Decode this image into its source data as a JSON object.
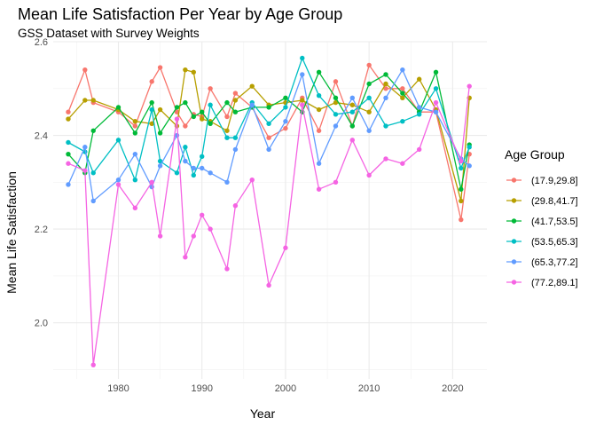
{
  "chart_data": {
    "type": "line",
    "title": "Mean Life Satisfaction Per Year by Age Group",
    "subtitle": "GSS Dataset with Survey Weights",
    "xlabel": "Year",
    "ylabel": "Mean Life Satisfaction",
    "xlim": [
      1972.2,
      2024.1
    ],
    "ylim": [
      1.88,
      2.6
    ],
    "xticks": [
      1980,
      1990,
      2000,
      2010,
      2020
    ],
    "yticks": [
      2.0,
      2.2,
      2.4,
      2.6
    ],
    "ytick_labels": [
      "2.0",
      "2.2",
      "2.4",
      "2.6"
    ],
    "grid": true,
    "legend_title": "Age Group",
    "legend_position": "right",
    "x": [
      1974,
      1976,
      1977,
      1980,
      1982,
      1984,
      1985,
      1987,
      1988,
      1989,
      1990,
      1991,
      1993,
      1994,
      1996,
      1998,
      2000,
      2002,
      2004,
      2006,
      2008,
      2010,
      2012,
      2014,
      2016,
      2018,
      2021,
      2022
    ],
    "series": [
      {
        "name": "(17.9,29.8]",
        "color": "#F8766D",
        "values": [
          2.45,
          2.54,
          2.47,
          2.45,
          2.42,
          2.515,
          2.545,
          2.45,
          2.42,
          2.445,
          2.44,
          2.5,
          2.44,
          2.49,
          2.46,
          2.395,
          2.415,
          2.48,
          2.41,
          2.515,
          2.42,
          2.55,
          2.5,
          2.5,
          2.45,
          2.45,
          2.22,
          2.36
        ]
      },
      {
        "name": "(29.8,41.7]",
        "color": "#B79F00",
        "values": [
          2.435,
          2.475,
          2.475,
          2.455,
          2.43,
          2.425,
          2.455,
          2.42,
          2.54,
          2.535,
          2.435,
          2.43,
          2.41,
          2.475,
          2.505,
          2.465,
          2.47,
          2.475,
          2.455,
          2.47,
          2.465,
          2.45,
          2.51,
          2.48,
          2.52,
          2.455,
          2.26,
          2.48
        ]
      },
      {
        "name": "(41.7,53.5]",
        "color": "#00BA38",
        "values": [
          2.36,
          2.32,
          2.41,
          2.46,
          2.405,
          2.47,
          2.405,
          2.46,
          2.47,
          2.44,
          2.45,
          2.425,
          2.47,
          2.45,
          2.46,
          2.46,
          2.48,
          2.45,
          2.535,
          2.48,
          2.42,
          2.51,
          2.53,
          2.49,
          2.45,
          2.535,
          2.285,
          2.38
        ]
      },
      {
        "name": "(53.5,65.3]",
        "color": "#00BFC4",
        "values": [
          2.385,
          2.365,
          2.32,
          2.39,
          2.305,
          2.455,
          2.345,
          2.32,
          2.375,
          2.315,
          2.355,
          2.465,
          2.395,
          2.395,
          2.47,
          2.425,
          2.46,
          2.565,
          2.485,
          2.445,
          2.45,
          2.48,
          2.42,
          2.43,
          2.445,
          2.5,
          2.33,
          2.375
        ]
      },
      {
        "name": "(65.3,77.2]",
        "color": "#619CFF",
        "values": [
          2.295,
          2.375,
          2.26,
          2.305,
          2.36,
          2.29,
          2.335,
          2.4,
          2.345,
          2.33,
          2.33,
          2.32,
          2.3,
          2.37,
          2.465,
          2.37,
          2.43,
          2.53,
          2.34,
          2.42,
          2.48,
          2.41,
          2.48,
          2.54,
          2.46,
          2.45,
          2.35,
          2.335
        ]
      },
      {
        "name": "(77.2,89.1]",
        "color": "#F564E3",
        "values": [
          2.34,
          2.325,
          1.91,
          2.295,
          2.245,
          2.3,
          2.185,
          2.435,
          2.14,
          2.185,
          2.23,
          2.2,
          2.115,
          2.25,
          2.305,
          2.08,
          2.16,
          2.465,
          2.285,
          2.3,
          2.39,
          2.315,
          2.35,
          2.34,
          2.37,
          2.47,
          2.345,
          2.505
        ]
      }
    ]
  }
}
